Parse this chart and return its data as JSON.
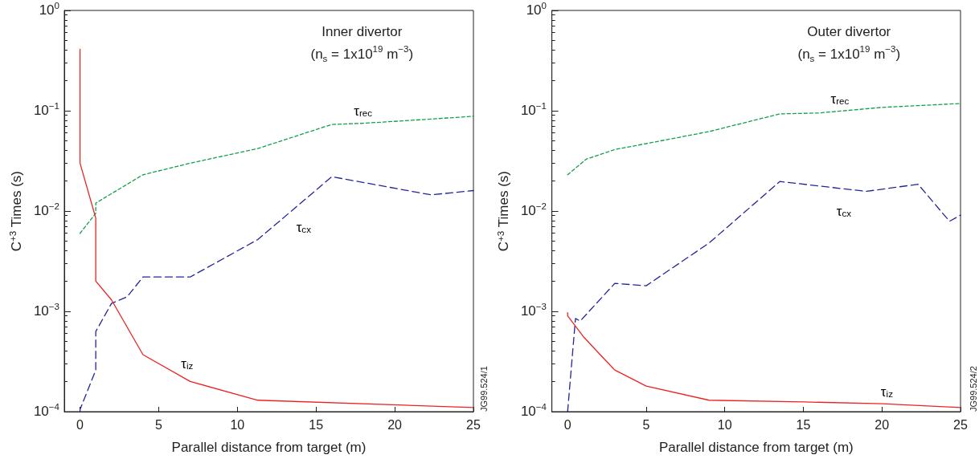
{
  "chart_data": [
    {
      "type": "line",
      "title": "Inner divertor",
      "subtitle": "(n$_{s}$ = 1x10$^{19}$ m$^{−3}$)",
      "xlabel": "Parallel distance from target (m)",
      "ylabel": "C$^{+3}$ Times (s)",
      "log": "y",
      "grid": false,
      "legend": false,
      "marker": "none",
      "xlim": [
        -1,
        25
      ],
      "xticks": [
        0,
        5,
        10,
        15,
        20,
        25
      ],
      "ylim": [
        0.0001,
        1
      ],
      "yticks": [
        {
          "value": 0.0001,
          "label": "10$^{−4}$"
        },
        {
          "value": 0.001,
          "label": "10$^{−3}$"
        },
        {
          "value": 0.01,
          "label": "10$^{−2}$"
        },
        {
          "value": 0.1,
          "label": "10$^{−1}$"
        },
        {
          "value": 1,
          "label": "10$^{0}$"
        }
      ],
      "annotations": [
        "JG99.524/1"
      ],
      "series": [
        {
          "name": "τ$_{rec}$",
          "color": "#12a04a",
          "line_style": "dotted",
          "x": [
            0,
            1,
            1,
            4,
            7,
            11.3,
            16,
            18,
            22,
            25
          ],
          "values": [
            0.006,
            0.0095,
            0.012,
            0.023,
            0.03,
            0.042,
            0.073,
            0.075,
            0.082,
            0.088
          ]
        },
        {
          "name": "τ$_{cx}$",
          "color": "#24249a",
          "line_style": "dashed",
          "x": [
            0,
            0,
            1,
            1,
            2,
            3,
            4,
            7,
            11.3,
            16,
            22.3,
            25
          ],
          "values": [
            0.0001,
            0.000105,
            0.00026,
            0.00063,
            0.0012,
            0.0014,
            0.0022,
            0.0022,
            0.0052,
            0.022,
            0.0145,
            0.016
          ]
        },
        {
          "name": "τ$_{iz}$",
          "color": "#ee2222",
          "line_style": "solid",
          "x": [
            0,
            0,
            1,
            1,
            2,
            4,
            7,
            11.3,
            25
          ],
          "values": [
            0.41,
            0.03,
            0.0085,
            0.002,
            0.0013,
            0.00037,
            0.0002,
            0.00013,
            0.00011
          ]
        }
      ]
    },
    {
      "type": "line",
      "title": "Outer divertor",
      "subtitle": "(n$_{s}$ = 1x10$^{19}$ m$^{−3}$)",
      "xlabel": "Parallel distance from target (m)",
      "ylabel": "C$^{+3}$ Times (s)",
      "log": "y",
      "grid": false,
      "legend": false,
      "marker": "none",
      "xlim": [
        -1,
        25
      ],
      "xticks": [
        0,
        5,
        10,
        15,
        20,
        25
      ],
      "ylim": [
        0.0001,
        1
      ],
      "yticks": [
        {
          "value": 0.0001,
          "label": "10$^{−4}$"
        },
        {
          "value": 0.001,
          "label": "10$^{−3}$"
        },
        {
          "value": 0.01,
          "label": "10$^{−2}$"
        },
        {
          "value": 0.1,
          "label": "10$^{−1}$"
        },
        {
          "value": 1,
          "label": "10$^{0}$"
        }
      ],
      "annotations": [
        "JG99.524/2"
      ],
      "series": [
        {
          "name": "τ$_{rec}$",
          "color": "#12a04a",
          "line_style": "dotted",
          "x": [
            0,
            1.2,
            3,
            5,
            9,
            13.5,
            16,
            20,
            25
          ],
          "values": [
            0.023,
            0.033,
            0.041,
            0.047,
            0.062,
            0.093,
            0.095,
            0.108,
            0.118
          ]
        },
        {
          "name": "τ$_{cx}$",
          "color": "#24249a",
          "line_style": "dashed",
          "x": [
            0,
            0.5,
            0.8,
            3,
            5,
            9,
            13.5,
            19,
            22.3,
            24.3,
            25
          ],
          "values": [
            0.0001,
            0.00085,
            0.0008,
            0.0019,
            0.0018,
            0.0048,
            0.0197,
            0.0157,
            0.0185,
            0.0079,
            0.0091
          ]
        },
        {
          "name": "τ$_{iz}$",
          "color": "#ee2222",
          "line_style": "solid",
          "x": [
            0,
            0,
            1,
            2,
            3,
            5,
            9,
            15,
            20,
            25
          ],
          "values": [
            0.00097,
            0.0009,
            0.00056,
            0.00038,
            0.00026,
            0.00018,
            0.00013,
            0.000125,
            0.00012,
            0.00011
          ]
        }
      ]
    }
  ]
}
